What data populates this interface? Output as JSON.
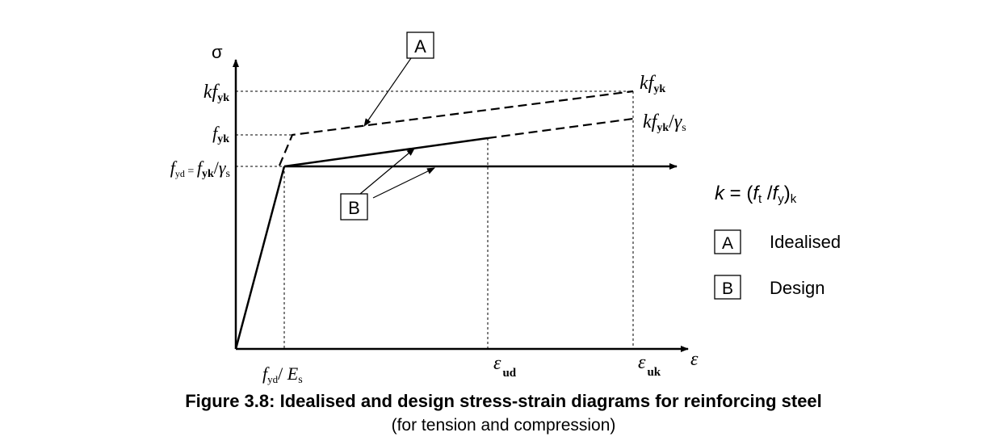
{
  "y_axis": {
    "symbol": "σ"
  },
  "x_axis": {
    "symbol": "ε"
  },
  "y_levels": {
    "kfyk": {
      "k": "kf",
      "sub": "yk"
    },
    "fyk": {
      "f": "f",
      "sub": "yk"
    },
    "fyd": {
      "f": "f",
      "sub": "yd",
      "eq": " = ",
      "f2": "f",
      "sub2": "yk",
      "slash": "/",
      "gamma": "γ",
      "gsub": "s"
    }
  },
  "x_ticks": {
    "fyd_es": {
      "f": "f",
      "sub": "yd",
      "slash": "/ ",
      "E": "E",
      "Esub": "s"
    },
    "eps_ud": {
      "eps": "ε",
      "sub": "ud"
    },
    "eps_uk": {
      "eps": "ε",
      "sub": "uk"
    }
  },
  "curve_labels": {
    "kfyk": {
      "k": "kf",
      "sub": "yk"
    },
    "kfyk_gs": {
      "k": "kf",
      "sub": "yk",
      "slash": "/",
      "gamma": "γ",
      "gsub": "s"
    }
  },
  "markers": {
    "A": "A",
    "B": "B"
  },
  "k_formula": {
    "k": "k",
    "eq": " = (",
    "f1": "f",
    "s1": "t",
    "slash": " /",
    "f2": "f",
    "s2": "y",
    "close": ")",
    "s3": "k"
  },
  "legend": [
    {
      "key": "A",
      "label": "Idealised"
    },
    {
      "key": "B",
      "label": "Design"
    }
  ],
  "caption": {
    "title": "Figure 3.8: Idealised and design stress-strain diagrams for reinforcing steel",
    "subtitle": "(for tension and compression)"
  }
}
